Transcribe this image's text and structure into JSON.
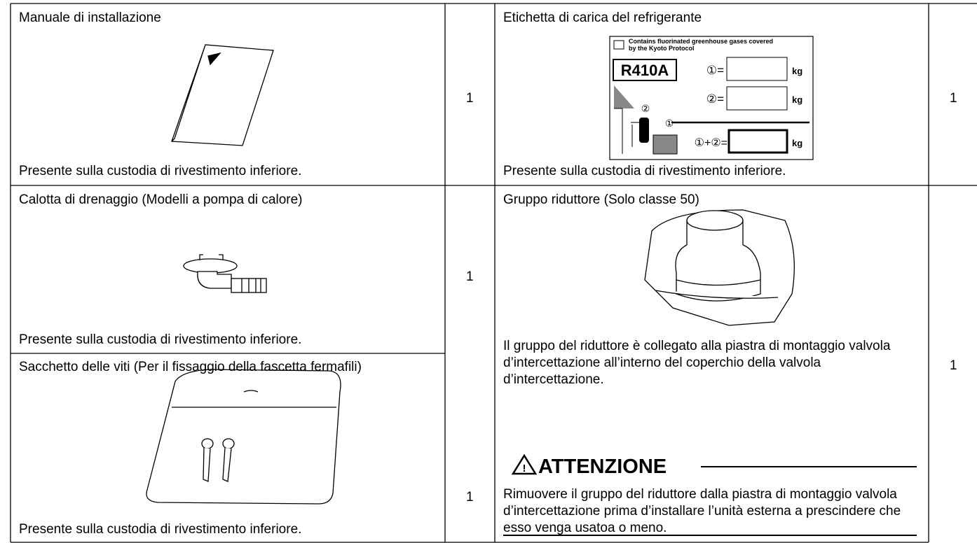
{
  "items": [
    {
      "title": "Manuale di installazione",
      "qty": "1",
      "note": "Presente sulla custodia di rivestimento inferiore."
    },
    {
      "title": "Etichetta di carica del refrigerante",
      "qty": "1",
      "note": "Presente sulla custodia di rivestimento inferiore."
    },
    {
      "title": "Calotta di drenaggio (Modelli a pompa di calore)",
      "qty": "1",
      "note": "Presente sulla custodia di rivestimento inferiore."
    },
    {
      "title": "Gruppo riduttore (Solo classe 50)",
      "qty": "1",
      "note": "Il gruppo del riduttore è collegato alla piastra di montag­gio valvola d’intercettazione all’interno del coperchio della valvola d’intercettazione.",
      "caution": {
        "heading": "ATTENZIONE",
        "text": "Rimuovere il gruppo del riduttore dalla piastra di mon­taggio valvola d’intercettazione prima d’installare l’unità esterna a prescindere che esso venga usatoa o meno."
      }
    },
    {
      "title": "Sacchetto delle viti (Per il fissaggio della fascetta fermafili)",
      "qty": "1",
      "note": "Presente sulla custodia di rivestimento inferiore."
    }
  ],
  "label": {
    "header_1": "Contains fluorinated greenhouse gases covered",
    "header_2": "by the Kyoto Protocol",
    "refrigerant": "R410A",
    "charge_1": "①=",
    "charge_2": "②=",
    "charge_total": "①+②=",
    "unit_1": "kg",
    "unit_2": "kg",
    "unit_total": "kg",
    "mark_1": "①",
    "mark_2": "②"
  }
}
